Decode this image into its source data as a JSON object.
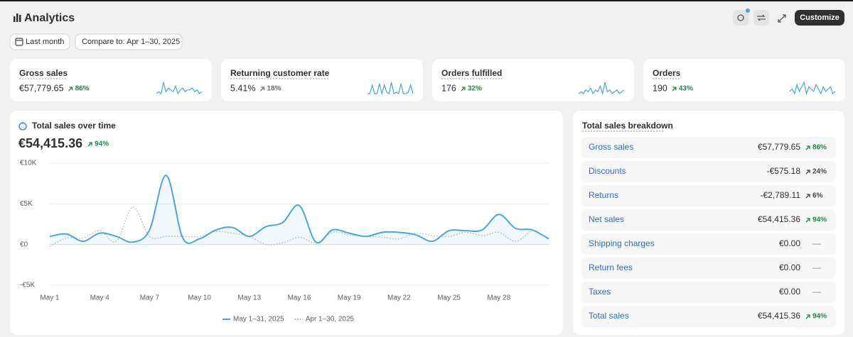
{
  "header": {
    "title": "Analytics",
    "customize": "Customize"
  },
  "filters": [
    "Last month",
    "Compare to: Apr 1–30, 2025"
  ],
  "cards": [
    {
      "label": "Gross sales",
      "value": "€57,779.65",
      "change": "86%",
      "change_color": "#1f8a4c",
      "sparkline": [
        2,
        3,
        2,
        8,
        3,
        5,
        4,
        3,
        6,
        2,
        4,
        5,
        3,
        4,
        4,
        5,
        3,
        4,
        2,
        3
      ]
    },
    {
      "label": "Returning customer rate",
      "value": "5.41%",
      "change": "18%",
      "change_color": "#6d6d6d",
      "sparkline": [
        1,
        1,
        7,
        1,
        1,
        8,
        1,
        7,
        2,
        1,
        9,
        1,
        2,
        1,
        8,
        1,
        1,
        2,
        7,
        1
      ]
    },
    {
      "label": "Orders fulfilled",
      "value": "176",
      "change": "32%",
      "change_color": "#1f8a4c",
      "sparkline": [
        3,
        4,
        3,
        5,
        4,
        6,
        3,
        5,
        4,
        7,
        3,
        9,
        4,
        5,
        3,
        4,
        5,
        3,
        4,
        5
      ]
    },
    {
      "label": "Orders",
      "value": "190",
      "change": "43%",
      "change_color": "#1f8a4c",
      "sparkline": [
        4,
        5,
        3,
        7,
        4,
        6,
        8,
        3,
        6,
        5,
        4,
        7,
        5,
        3,
        6,
        4,
        5,
        6,
        3,
        4
      ]
    }
  ],
  "chart_data": {
    "type": "line",
    "title": "Total sales over time",
    "total": "€54,415.36",
    "change": "94%",
    "change_color": "#1f8a4c",
    "categories": [
      "May 1",
      null,
      null,
      "May 4",
      null,
      null,
      "May 7",
      null,
      null,
      "May 10",
      null,
      null,
      "May 13",
      null,
      null,
      "May 16",
      null,
      null,
      "May 19",
      null,
      null,
      "May 22",
      null,
      null,
      "May 25",
      null,
      null,
      "May 28",
      null,
      null,
      null
    ],
    "series": [
      {
        "name": "May 1–31, 2025",
        "color": "#4aa8d8",
        "style": "solid",
        "values": [
          1000,
          1300,
          400,
          1400,
          1000,
          300,
          1800,
          8500,
          800,
          700,
          1800,
          2100,
          1000,
          2200,
          2700,
          4800,
          300,
          1800,
          1400,
          1000,
          1500,
          1500,
          1200,
          400,
          1700,
          1700,
          1800,
          3700,
          2000,
          1800,
          700
        ]
      },
      {
        "name": "Apr 1–30, 2025",
        "color": "#b5b5b5",
        "style": "dotted",
        "values": [
          -200,
          800,
          800,
          1700,
          400,
          4600,
          1000,
          1000,
          1000,
          1000,
          1600,
          1400,
          1000,
          0,
          200,
          900,
          200,
          1500,
          1200,
          1000,
          900,
          700,
          1400,
          1100,
          1000,
          1500,
          1100,
          1500,
          400,
          1800,
          null
        ]
      }
    ],
    "ylim": [
      -5000,
      10000
    ],
    "yticks": [
      {
        "value": -5000,
        "label": "-€5K"
      },
      {
        "value": 0,
        "label": "€0"
      },
      {
        "value": 5000,
        "label": "€5K"
      },
      {
        "value": 10000,
        "label": "€10K"
      }
    ],
    "grid": true
  },
  "breakdown": {
    "title": "Total sales breakdown",
    "rows": [
      {
        "label": "Gross sales",
        "value": "€57,779.65",
        "change": "86%",
        "change_color": "#1f8a4c"
      },
      {
        "label": "Discounts",
        "value": "-€575.18",
        "change": "24%",
        "change_color": "#4a4a4a"
      },
      {
        "label": "Returns",
        "value": "-€2,789.11",
        "change": "6%",
        "change_color": "#4a4a4a"
      },
      {
        "label": "Net sales",
        "value": "€54,415.36",
        "change": "94%",
        "change_color": "#1f8a4c"
      },
      {
        "label": "Shipping charges",
        "value": "€0.00",
        "change": "—"
      },
      {
        "label": "Return fees",
        "value": "€0.00",
        "change": "—"
      },
      {
        "label": "Taxes",
        "value": "€0.00",
        "change": "—"
      },
      {
        "label": "Total sales",
        "value": "€54,415.36",
        "change": "94%",
        "change_color": "#1f8a4c"
      }
    ]
  }
}
